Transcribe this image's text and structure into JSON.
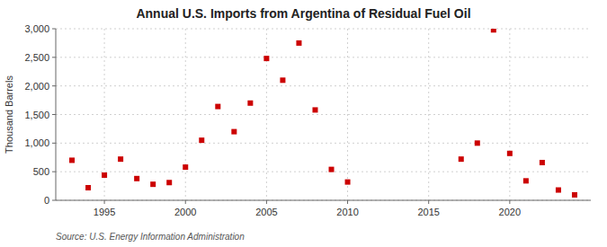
{
  "chart_data": {
    "type": "scatter",
    "title": "Annual U.S. Imports from Argentina of Residual Fuel Oil",
    "y_label": "Thousand Barrels",
    "annotations": [
      "Source: U.S. Energy Information Administration"
    ],
    "x": [
      1993,
      1994,
      1995,
      1996,
      1997,
      1998,
      1999,
      2000,
      2001,
      2002,
      2003,
      2004,
      2005,
      2006,
      2007,
      2008,
      2009,
      2010,
      2017,
      2018,
      2019,
      2020,
      2021,
      2022,
      2023,
      2024
    ],
    "values": [
      700,
      220,
      440,
      720,
      380,
      280,
      310,
      580,
      1050,
      1640,
      1200,
      1700,
      2480,
      2100,
      2750,
      1580,
      540,
      320,
      720,
      1000,
      2980,
      820,
      340,
      660,
      180,
      95
    ],
    "color": "#cc0000",
    "marker": "square",
    "xlim": [
      1992,
      2025
    ],
    "xticks": [
      1995,
      2000,
      2005,
      2010,
      2015,
      2020
    ],
    "ylim": [
      0,
      3000
    ],
    "yticks": [
      0,
      500,
      {
        "value": 1000,
        "label": "1,000"
      },
      {
        "value": 1500,
        "label": "1,500"
      },
      {
        "value": 2000,
        "label": "2,000"
      },
      {
        "value": 2500,
        "label": "2,500"
      },
      {
        "value": 3000,
        "label": "3,000"
      }
    ],
    "grid": true
  }
}
